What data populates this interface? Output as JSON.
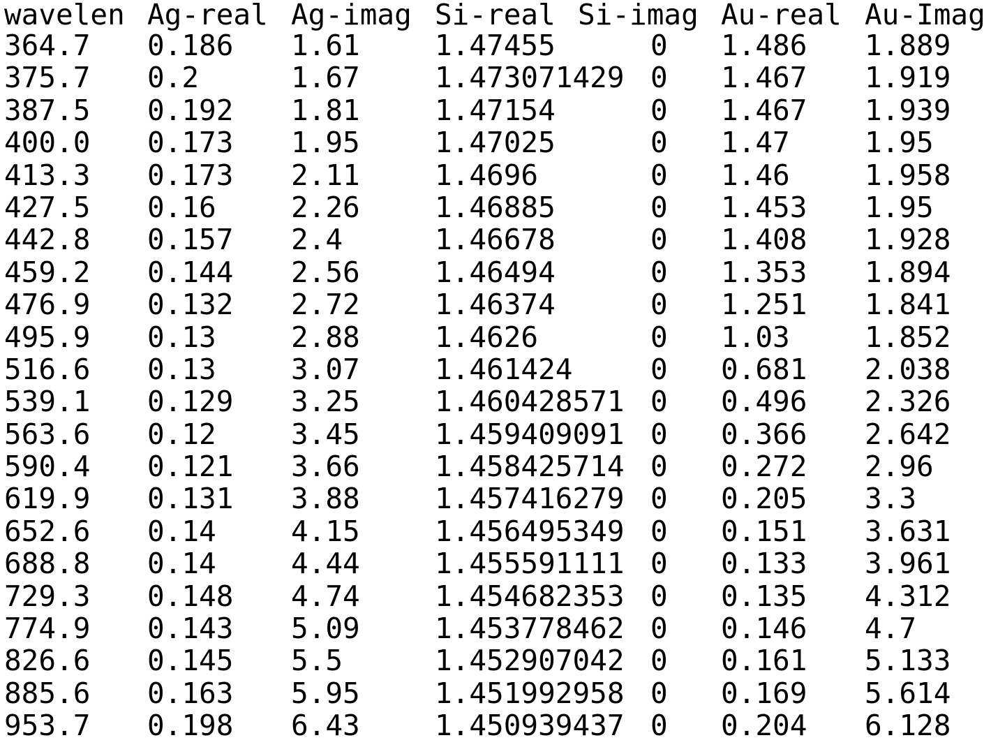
{
  "table": {
    "headers": [
      "wavelen",
      "Ag-real",
      "Ag-imag",
      "Si-real",
      "Si-imag",
      "Au-real",
      "Au-Imag"
    ],
    "rows": [
      [
        "364.7",
        "0.186",
        "1.61",
        "1.47455",
        "0",
        "1.486",
        "1.889"
      ],
      [
        "375.7",
        "0.2",
        "1.67",
        "1.473071429",
        "0",
        "1.467",
        "1.919"
      ],
      [
        "387.5",
        "0.192",
        "1.81",
        "1.47154",
        "0",
        "1.467",
        "1.939"
      ],
      [
        "400.0",
        "0.173",
        "1.95",
        "1.47025",
        "0",
        "1.47",
        "1.95"
      ],
      [
        "413.3",
        "0.173",
        "2.11",
        "1.4696",
        "0",
        "1.46",
        "1.958"
      ],
      [
        "427.5",
        "0.16",
        "2.26",
        "1.46885",
        "0",
        "1.453",
        "1.95"
      ],
      [
        "442.8",
        "0.157",
        "2.4",
        "1.46678",
        "0",
        "1.408",
        "1.928"
      ],
      [
        "459.2",
        "0.144",
        "2.56",
        "1.46494",
        "0",
        "1.353",
        "1.894"
      ],
      [
        "476.9",
        "0.132",
        "2.72",
        "1.46374",
        "0",
        "1.251",
        "1.841"
      ],
      [
        "495.9",
        "0.13",
        "2.88",
        "1.4626",
        "0",
        "1.03",
        "1.852"
      ],
      [
        "516.6",
        "0.13",
        "3.07",
        "1.461424",
        "0",
        "0.681",
        "2.038"
      ],
      [
        "539.1",
        "0.129",
        "3.25",
        "1.460428571",
        "0",
        "0.496",
        "2.326"
      ],
      [
        "563.6",
        "0.12",
        "3.45",
        "1.459409091",
        "0",
        "0.366",
        "2.642"
      ],
      [
        "590.4",
        "0.121",
        "3.66",
        "1.458425714",
        "0",
        "0.272",
        "2.96"
      ],
      [
        "619.9",
        "0.131",
        "3.88",
        "1.457416279",
        "0",
        "0.205",
        "3.3"
      ],
      [
        "652.6",
        "0.14",
        "4.15",
        "1.456495349",
        "0",
        "0.151",
        "3.631"
      ],
      [
        "688.8",
        "0.14",
        "4.44",
        "1.455591111",
        "0",
        "0.133",
        "3.961"
      ],
      [
        "729.3",
        "0.148",
        "4.74",
        "1.454682353",
        "0",
        "0.135",
        "4.312"
      ],
      [
        "774.9",
        "0.143",
        "5.09",
        "1.453778462",
        "0",
        "0.146",
        "4.7"
      ],
      [
        "826.6",
        "0.145",
        "5.5",
        "1.452907042",
        "0",
        "0.161",
        "5.133"
      ],
      [
        "885.6",
        "0.163",
        "5.95",
        "1.451992958",
        "0",
        "0.169",
        "5.614"
      ],
      [
        "953.7",
        "0.198",
        "6.43",
        "1.450939437",
        "0",
        "0.204",
        "6.128"
      ]
    ]
  }
}
